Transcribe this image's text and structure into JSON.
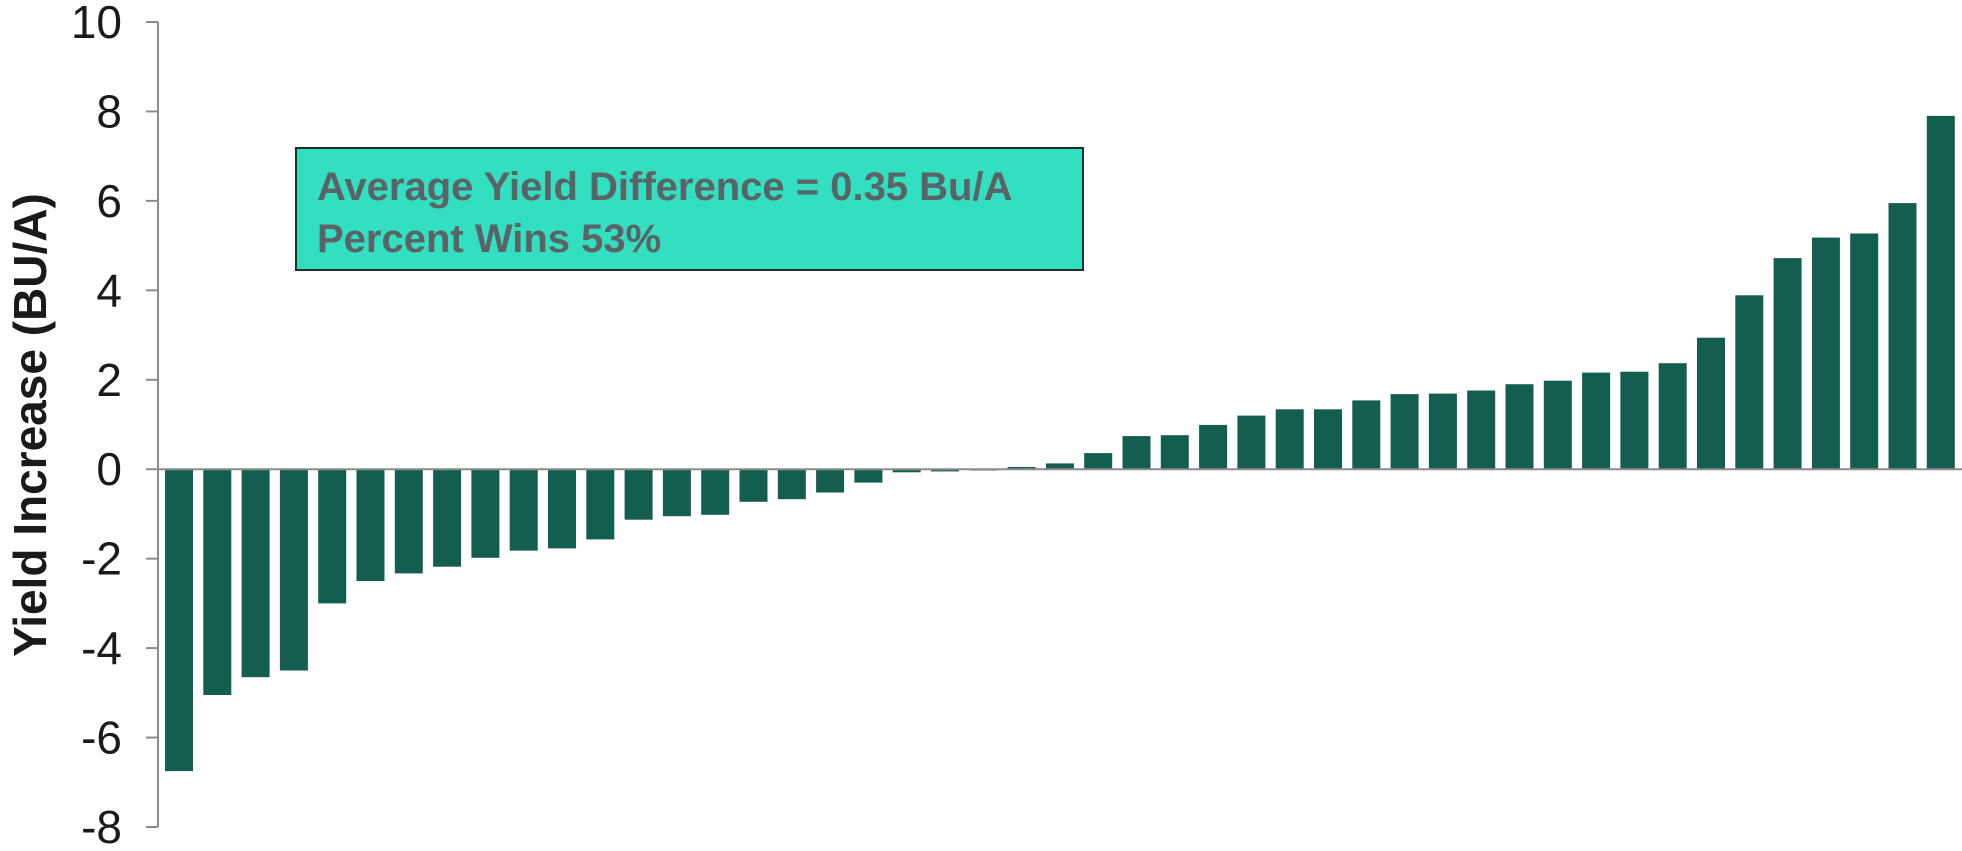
{
  "chart_data": {
    "type": "bar",
    "title": "",
    "xlabel": "",
    "ylabel": "Yield Increase (BU/A)",
    "ylim": [
      -8,
      10
    ],
    "yticks": [
      10,
      8,
      6,
      4,
      2,
      0,
      -2,
      -4,
      -6,
      -8
    ],
    "grid": false,
    "legend": "none",
    "bar_color": "#135e4f",
    "values": [
      -6.75,
      -5.05,
      -4.65,
      -4.5,
      -3.0,
      -2.5,
      -2.33,
      -2.18,
      -1.98,
      -1.82,
      -1.77,
      -1.57,
      -1.13,
      -1.05,
      -1.02,
      -0.73,
      -0.67,
      -0.52,
      -0.3,
      -0.07,
      -0.05,
      -0.03,
      0.05,
      0.13,
      0.36,
      0.74,
      0.76,
      0.99,
      1.2,
      1.34,
      1.34,
      1.54,
      1.68,
      1.69,
      1.76,
      1.9,
      1.98,
      2.16,
      2.18,
      2.37,
      2.94,
      3.89,
      4.72,
      5.18,
      5.27,
      5.95,
      7.9
    ]
  },
  "annotation": {
    "line1": "Average Yield Difference = 0.35 Bu/A",
    "line2": "Percent Wins 53%",
    "background": "#32dfc0",
    "text_color": "#5b6366"
  }
}
